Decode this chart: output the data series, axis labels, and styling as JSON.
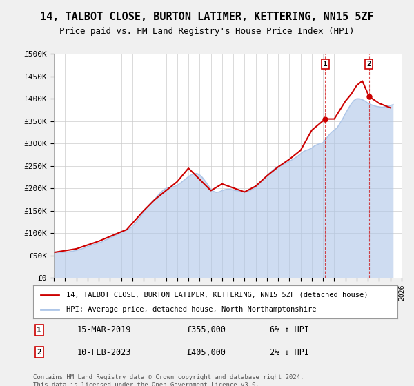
{
  "title": "14, TALBOT CLOSE, BURTON LATIMER, KETTERING, NN15 5ZF",
  "subtitle": "Price paid vs. HM Land Registry's House Price Index (HPI)",
  "xlabel": "",
  "ylabel": "",
  "yticks": [
    0,
    50000,
    100000,
    150000,
    200000,
    250000,
    300000,
    350000,
    400000,
    450000,
    500000
  ],
  "ytick_labels": [
    "£0",
    "£50K",
    "£100K",
    "£150K",
    "£200K",
    "£250K",
    "£300K",
    "£350K",
    "£400K",
    "£450K",
    "£500K"
  ],
  "ylim": [
    0,
    500000
  ],
  "x_start_year": 1995,
  "x_end_year": 2026,
  "hpi_color": "#aec6e8",
  "price_color": "#cc0000",
  "background_color": "#f0f0f0",
  "plot_bg_color": "#ffffff",
  "grid_color": "#cccccc",
  "legend_label_price": "14, TALBOT CLOSE, BURTON LATIMER, KETTERING, NN15 5ZF (detached house)",
  "legend_label_hpi": "HPI: Average price, detached house, North Northamptonshire",
  "annotation1_label": "1",
  "annotation1_date": "15-MAR-2019",
  "annotation1_price": "£355,000",
  "annotation1_change": "6% ↑ HPI",
  "annotation1_year": 2019.2,
  "annotation1_value": 355000,
  "annotation2_label": "2",
  "annotation2_date": "10-FEB-2023",
  "annotation2_price": "£405,000",
  "annotation2_change": "2% ↓ HPI",
  "annotation2_year": 2023.1,
  "annotation2_value": 405000,
  "footer": "Contains HM Land Registry data © Crown copyright and database right 2024.\nThis data is licensed under the Open Government Licence v3.0.",
  "hpi_years": [
    1995,
    1995.25,
    1995.5,
    1995.75,
    1996,
    1996.25,
    1996.5,
    1996.75,
    1997,
    1997.25,
    1997.5,
    1997.75,
    1998,
    1998.25,
    1998.5,
    1998.75,
    1999,
    1999.25,
    1999.5,
    1999.75,
    2000,
    2000.25,
    2000.5,
    2000.75,
    2001,
    2001.25,
    2001.5,
    2001.75,
    2002,
    2002.25,
    2002.5,
    2002.75,
    2003,
    2003.25,
    2003.5,
    2003.75,
    2004,
    2004.25,
    2004.5,
    2004.75,
    2005,
    2005.25,
    2005.5,
    2005.75,
    2006,
    2006.25,
    2006.5,
    2006.75,
    2007,
    2007.25,
    2007.5,
    2007.75,
    2008,
    2008.25,
    2008.5,
    2008.75,
    2009,
    2009.25,
    2009.5,
    2009.75,
    2010,
    2010.25,
    2010.5,
    2010.75,
    2011,
    2011.25,
    2011.5,
    2011.75,
    2012,
    2012.25,
    2012.5,
    2012.75,
    2013,
    2013.25,
    2013.5,
    2013.75,
    2014,
    2014.25,
    2014.5,
    2014.75,
    2015,
    2015.25,
    2015.5,
    2015.75,
    2016,
    2016.25,
    2016.5,
    2016.75,
    2017,
    2017.25,
    2017.5,
    2017.75,
    2018,
    2018.25,
    2018.5,
    2018.75,
    2019,
    2019.25,
    2019.5,
    2019.75,
    2020,
    2020.25,
    2020.5,
    2020.75,
    2021,
    2021.25,
    2021.5,
    2021.75,
    2022,
    2022.25,
    2022.5,
    2022.75,
    2023,
    2023.25,
    2023.5,
    2023.75,
    2024,
    2024.25,
    2024.5,
    2024.75,
    2025,
    2025.25
  ],
  "hpi_values": [
    58000,
    57500,
    57200,
    57000,
    57500,
    58000,
    59000,
    60000,
    61500,
    63000,
    65000,
    67000,
    70000,
    72000,
    74000,
    76000,
    78000,
    80000,
    83000,
    86000,
    89000,
    92000,
    95000,
    98000,
    101000,
    104000,
    107000,
    110000,
    115000,
    122000,
    130000,
    138000,
    147000,
    155000,
    163000,
    170000,
    176000,
    183000,
    190000,
    196000,
    200000,
    202000,
    203000,
    204000,
    207000,
    211000,
    216000,
    221000,
    226000,
    230000,
    233000,
    233000,
    230000,
    224000,
    216000,
    207000,
    198000,
    193000,
    191000,
    192000,
    195000,
    197000,
    198000,
    198000,
    196000,
    195000,
    194000,
    193000,
    192000,
    193000,
    195000,
    198000,
    203000,
    208000,
    215000,
    222000,
    228000,
    234000,
    240000,
    245000,
    248000,
    251000,
    254000,
    257000,
    260000,
    264000,
    268000,
    272000,
    277000,
    282000,
    285000,
    287000,
    290000,
    295000,
    298000,
    300000,
    302000,
    310000,
    318000,
    325000,
    330000,
    335000,
    345000,
    355000,
    367000,
    378000,
    388000,
    396000,
    400000,
    400000,
    398000,
    395000,
    390000,
    387000,
    385000,
    383000,
    382000,
    381000,
    382000,
    383000,
    385000,
    387000
  ],
  "price_years": [
    1995,
    1997,
    1999,
    2001,
    2001.5,
    2003,
    2004,
    2006,
    2007,
    2009,
    2010,
    2012,
    2013,
    2014,
    2015,
    2016,
    2017,
    2018,
    2019.2,
    2020,
    2021,
    2021.5,
    2022,
    2022.5,
    2023.1,
    2024,
    2025
  ],
  "price_values": [
    57000,
    65000,
    82000,
    103000,
    108000,
    150000,
    175000,
    215000,
    245000,
    195000,
    210000,
    192000,
    205000,
    228000,
    248000,
    265000,
    285000,
    330000,
    355000,
    355000,
    395000,
    410000,
    430000,
    440000,
    405000,
    390000,
    380000
  ]
}
